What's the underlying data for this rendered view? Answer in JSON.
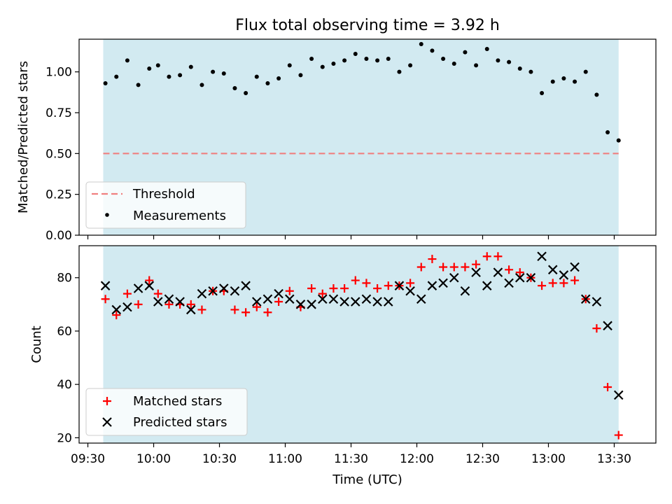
{
  "chart_data": [
    {
      "type": "scatter",
      "title": "Flux total observing time = 3.92 h",
      "ylabel": "Matched/Predicted stars",
      "xlabel": "",
      "x_unit": "hours",
      "xlim": [
        "09:26",
        "13:49"
      ],
      "ylim": [
        0,
        1.2
      ],
      "x_ticks": [
        "09:30",
        "10:00",
        "10:30",
        "11:00",
        "11:30",
        "12:00",
        "12:30",
        "13:00",
        "13:30"
      ],
      "y_ticks": [
        "0.00",
        "0.25",
        "0.50",
        "0.75",
        "1.00"
      ],
      "shaded_interval": [
        "09:37",
        "13:32"
      ],
      "shade_color": "#add8e6",
      "threshold": {
        "name": "Threshold",
        "value": 0.5,
        "color": "#f08080",
        "style": "dashed"
      },
      "legend_position": "lower-left",
      "series": [
        {
          "name": "Measurements",
          "marker": "dot",
          "color": "#000000",
          "points": [
            [
              "09:38",
              0.93
            ],
            [
              "09:43",
              0.97
            ],
            [
              "09:48",
              1.07
            ],
            [
              "09:53",
              0.92
            ],
            [
              "09:58",
              1.02
            ],
            [
              "10:02",
              1.04
            ],
            [
              "10:07",
              0.97
            ],
            [
              "10:12",
              0.98
            ],
            [
              "10:17",
              1.03
            ],
            [
              "10:22",
              0.92
            ],
            [
              "10:27",
              1.0
            ],
            [
              "10:32",
              0.99
            ],
            [
              "10:37",
              0.9
            ],
            [
              "10:42",
              0.87
            ],
            [
              "10:47",
              0.97
            ],
            [
              "10:52",
              0.93
            ],
            [
              "10:57",
              0.96
            ],
            [
              "11:02",
              1.04
            ],
            [
              "11:07",
              0.98
            ],
            [
              "11:12",
              1.08
            ],
            [
              "11:17",
              1.03
            ],
            [
              "11:22",
              1.05
            ],
            [
              "11:27",
              1.07
            ],
            [
              "11:32",
              1.11
            ],
            [
              "11:37",
              1.08
            ],
            [
              "11:42",
              1.07
            ],
            [
              "11:47",
              1.08
            ],
            [
              "11:52",
              1.0
            ],
            [
              "11:57",
              1.04
            ],
            [
              "12:02",
              1.17
            ],
            [
              "12:07",
              1.13
            ],
            [
              "12:12",
              1.08
            ],
            [
              "12:17",
              1.05
            ],
            [
              "12:22",
              1.12
            ],
            [
              "12:27",
              1.04
            ],
            [
              "12:32",
              1.14
            ],
            [
              "12:37",
              1.07
            ],
            [
              "12:42",
              1.06
            ],
            [
              "12:47",
              1.02
            ],
            [
              "12:52",
              1.0
            ],
            [
              "12:57",
              0.87
            ],
            [
              "13:02",
              0.94
            ],
            [
              "13:07",
              0.96
            ],
            [
              "13:12",
              0.94
            ],
            [
              "13:17",
              1.0
            ],
            [
              "13:22",
              0.86
            ],
            [
              "13:27",
              0.63
            ],
            [
              "13:32",
              0.58
            ]
          ]
        }
      ]
    },
    {
      "type": "scatter",
      "title": "",
      "ylabel": "Count",
      "xlabel": "Time (UTC)",
      "x_unit": "hours",
      "xlim": [
        "09:26",
        "13:49"
      ],
      "ylim": [
        18,
        92
      ],
      "x_ticks": [
        "09:30",
        "10:00",
        "10:30",
        "11:00",
        "11:30",
        "12:00",
        "12:30",
        "13:00",
        "13:30"
      ],
      "y_ticks": [
        "20",
        "40",
        "60",
        "80"
      ],
      "shaded_interval": [
        "09:37",
        "13:32"
      ],
      "shade_color": "#add8e6",
      "legend_position": "lower-left",
      "x": [
        "09:38",
        "09:43",
        "09:48",
        "09:53",
        "09:58",
        "10:02",
        "10:07",
        "10:12",
        "10:17",
        "10:22",
        "10:27",
        "10:32",
        "10:37",
        "10:42",
        "10:47",
        "10:52",
        "10:57",
        "11:02",
        "11:07",
        "11:12",
        "11:17",
        "11:22",
        "11:27",
        "11:32",
        "11:37",
        "11:42",
        "11:47",
        "11:52",
        "11:57",
        "12:02",
        "12:07",
        "12:12",
        "12:17",
        "12:22",
        "12:27",
        "12:32",
        "12:37",
        "12:42",
        "12:47",
        "12:52",
        "12:57",
        "13:02",
        "13:07",
        "13:12",
        "13:17",
        "13:22",
        "13:27",
        "13:32"
      ],
      "series": [
        {
          "name": "Matched stars",
          "marker": "plus",
          "color": "#ff0000",
          "values": [
            72,
            66,
            74,
            70,
            79,
            74,
            70,
            70,
            70,
            68,
            75,
            75,
            68,
            67,
            69,
            67,
            71,
            75,
            69,
            76,
            74,
            76,
            76,
            79,
            78,
            76,
            77,
            77,
            78,
            84,
            87,
            84,
            84,
            84,
            85,
            88,
            88,
            83,
            82,
            80,
            77,
            78,
            78,
            79,
            72,
            61,
            39,
            21
          ]
        },
        {
          "name": "Predicted stars",
          "marker": "x",
          "color": "#000000",
          "values": [
            77,
            68,
            69,
            76,
            77,
            71,
            72,
            71,
            68,
            74,
            75,
            76,
            75,
            77,
            71,
            72,
            74,
            72,
            70,
            70,
            72,
            72,
            71,
            71,
            72,
            71,
            71,
            77,
            75,
            72,
            77,
            78,
            80,
            75,
            82,
            77,
            82,
            78,
            80,
            80,
            88,
            83,
            81,
            84,
            72,
            71,
            62,
            36
          ]
        }
      ]
    }
  ]
}
